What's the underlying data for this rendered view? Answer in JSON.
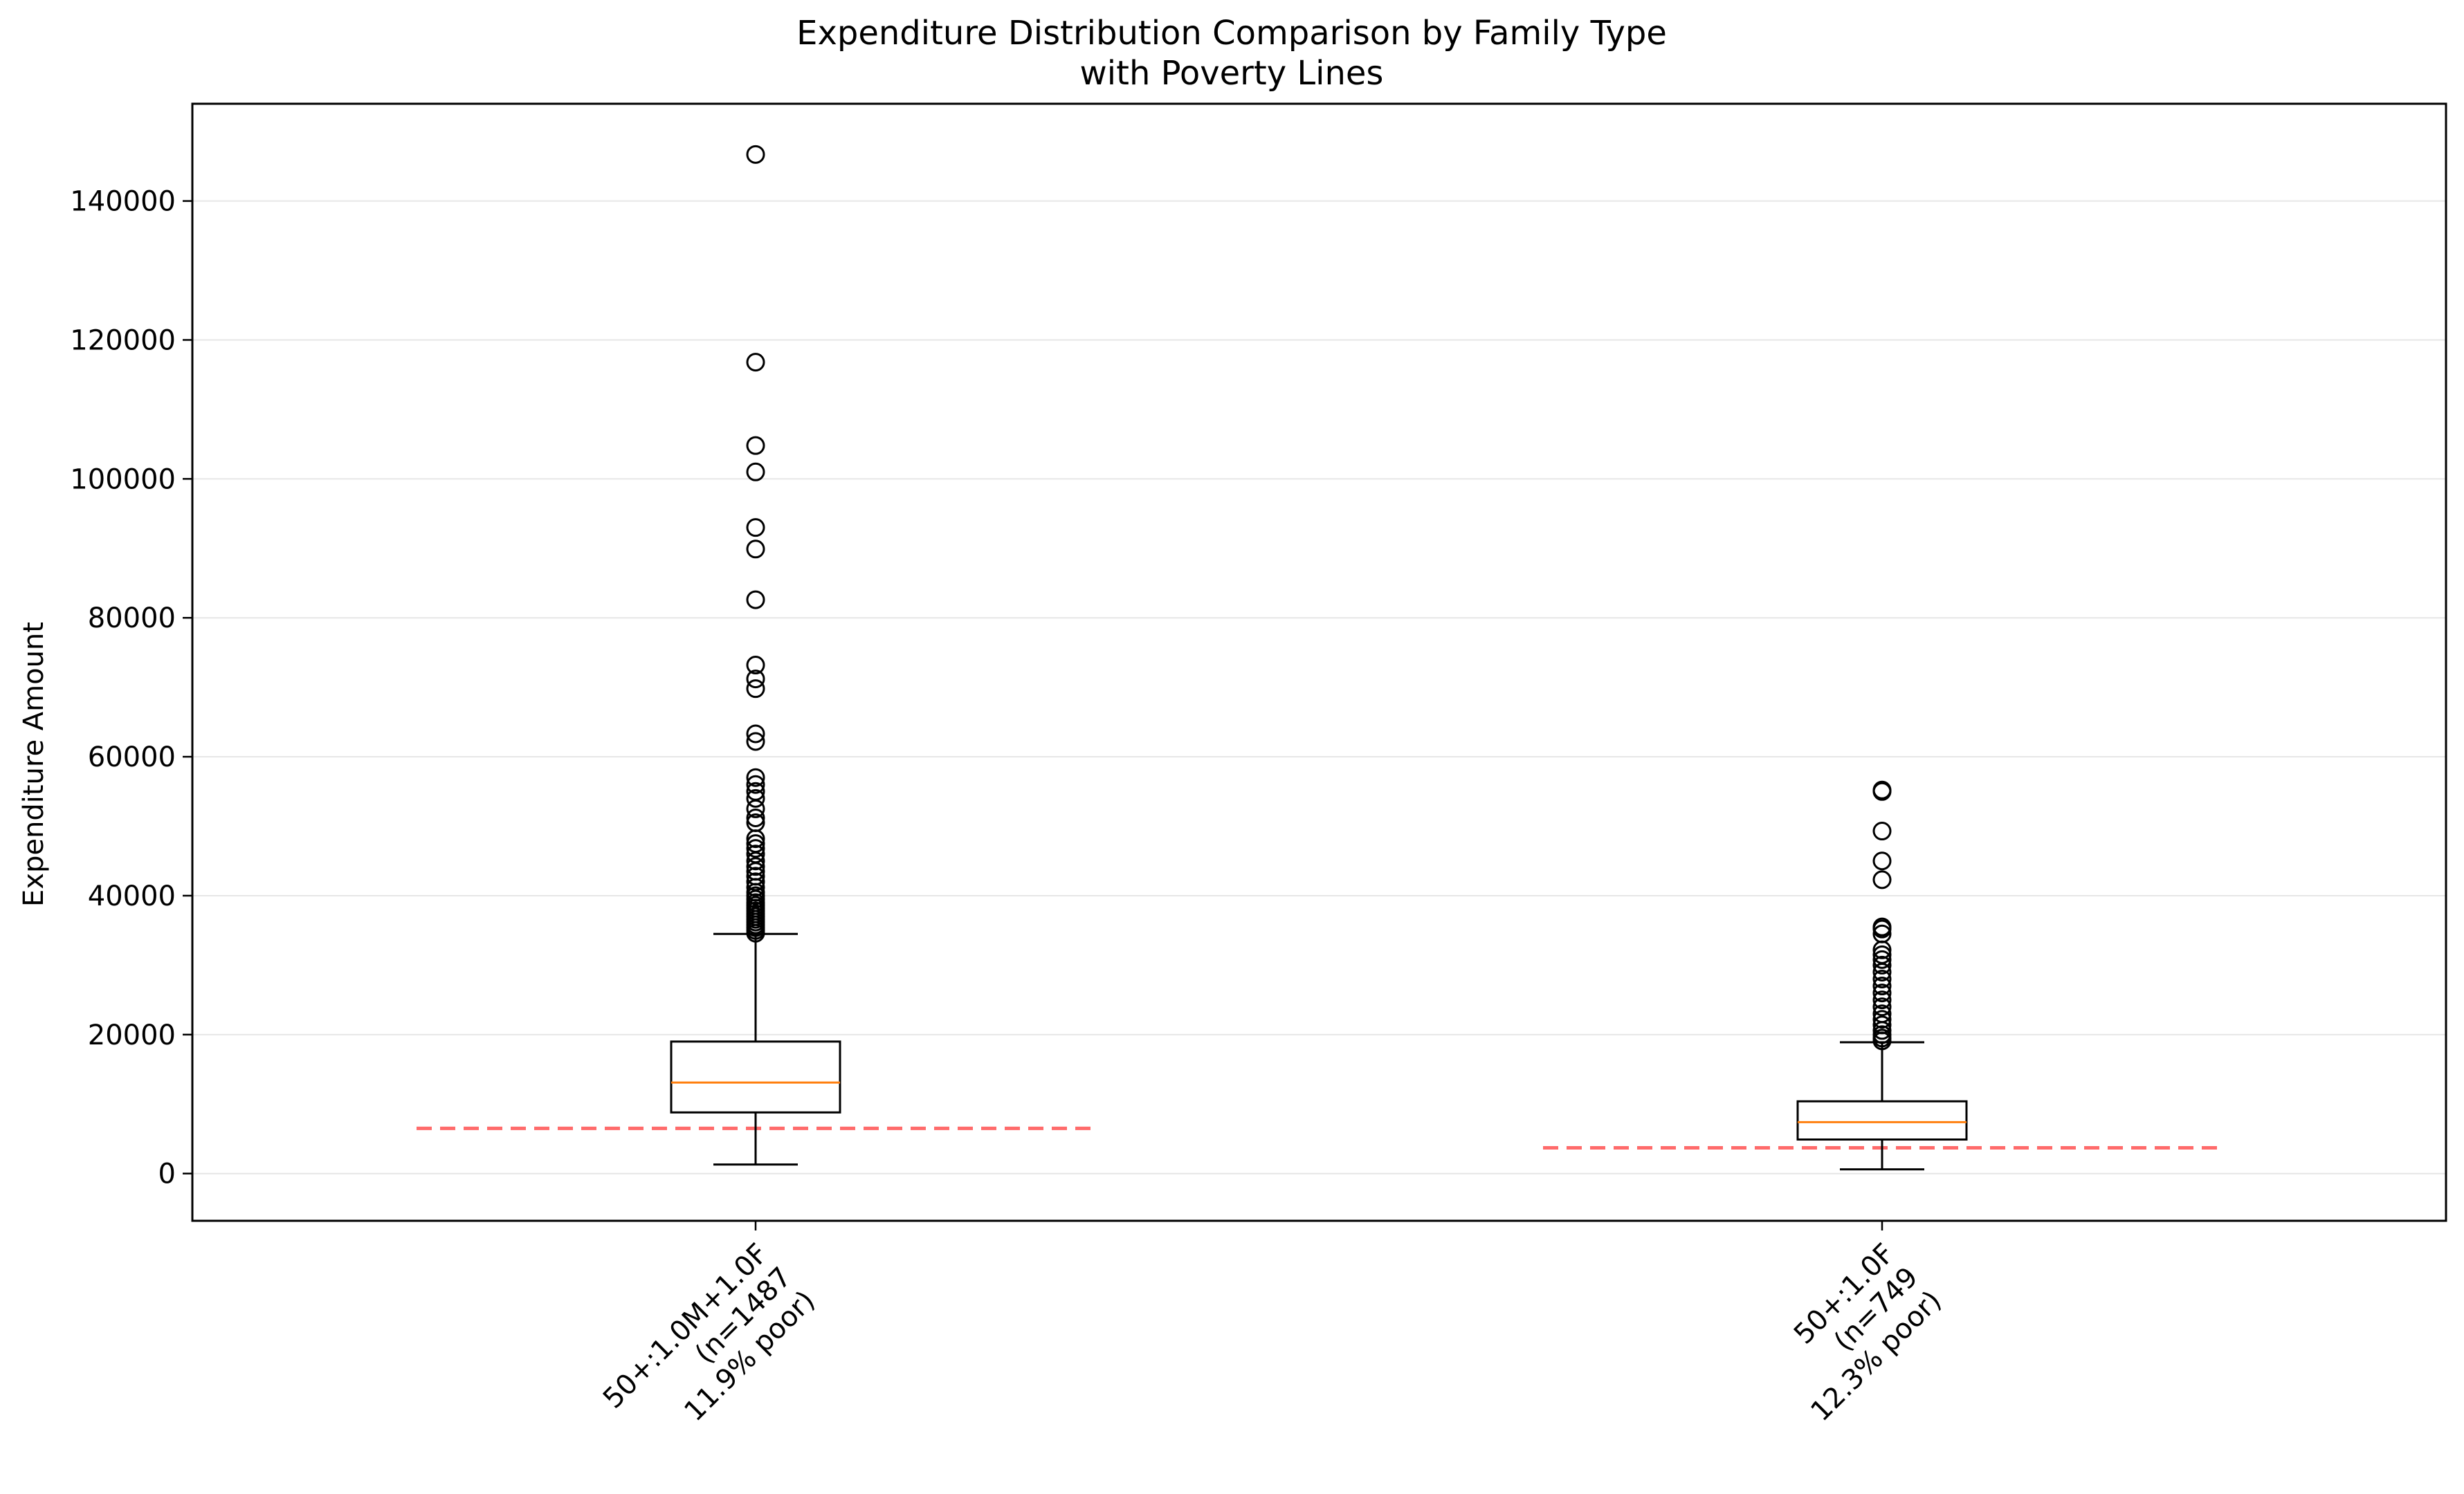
{
  "chart_data": {
    "type": "box",
    "title_line1": "Expenditure Distribution Comparison by Family Type",
    "title_line2": "with Poverty Lines",
    "xlabel": "",
    "ylabel": "Expenditure Amount",
    "ylim": [
      -6800,
      154000
    ],
    "yticks": [
      0,
      20000,
      40000,
      60000,
      80000,
      100000,
      120000,
      140000
    ],
    "ytick_labels": [
      "0",
      "20000",
      "40000",
      "60000",
      "80000",
      "100000",
      "120000",
      "140000"
    ],
    "grid": "horizontal",
    "colors": {
      "box_edge": "#000000",
      "median": "#ff7f0e",
      "poverty_line": "#ff6b6b",
      "grid": "#e6e6e6"
    },
    "groups": [
      {
        "label_lines": [
          "50+:1.0M+1.0F",
          "(n=1487",
          "11.9% poor)"
        ],
        "n": 1487,
        "poor_pct": 11.9,
        "whisker_low": 1300,
        "q1": 8800,
        "median": 13100,
        "q3": 19000,
        "whisker_high": 34500,
        "poverty_line": 6500,
        "outliers": [
          34600,
          35000,
          35400,
          35800,
          36200,
          36600,
          37000,
          37400,
          37800,
          38200,
          38600,
          39000,
          39500,
          40000,
          40500,
          41200,
          42000,
          42800,
          43500,
          44200,
          45000,
          46000,
          46800,
          47500,
          48200,
          50500,
          51200,
          52500,
          54000,
          55000,
          56000,
          57000,
          62200,
          63300,
          69800,
          71200,
          73200,
          82600,
          89900,
          93000,
          101000,
          104800,
          116800,
          146700
        ]
      },
      {
        "label_lines": [
          "50+:1.0F",
          "(n=749",
          "12.3% poor)"
        ],
        "n": 749,
        "poor_pct": 12.3,
        "whisker_low": 600,
        "q1": 4900,
        "median": 7400,
        "q3": 10400,
        "whisker_high": 18900,
        "poverty_line": 3700,
        "outliers": [
          19100,
          19500,
          20000,
          20600,
          21400,
          22200,
          23000,
          24000,
          25000,
          26000,
          27000,
          28000,
          29000,
          30000,
          30800,
          31500,
          32200,
          34500,
          35200,
          35500,
          42300,
          45000,
          49300,
          55000,
          55200
        ]
      }
    ]
  }
}
